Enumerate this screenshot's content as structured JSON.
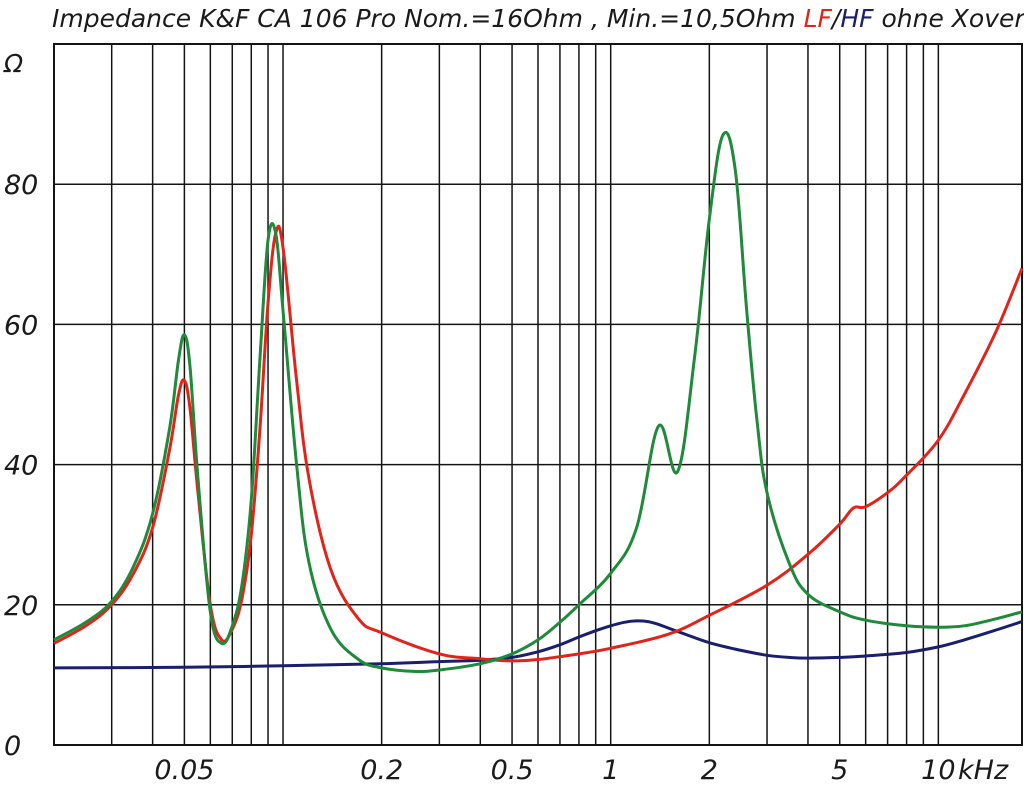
{
  "chart_data": {
    "type": "line",
    "title_parts": [
      {
        "text": "Impedance K&F CA 106 Pro Nom.=16Ohm ,  Min.=10,5Ohm ",
        "color": "#1a1a1a"
      },
      {
        "text": "LF",
        "color": "#e2231a"
      },
      {
        "text": "/",
        "color": "#1a1a1a"
      },
      {
        "text": "HF",
        "color": "#1b1f6b"
      },
      {
        "text": " ohne Xover",
        "color": "#1a1a1a"
      }
    ],
    "ylabel": "Ω",
    "xlabel_unit": "kHz",
    "x_scale": "log",
    "xlim": [
      0.02,
      18
    ],
    "ylim": [
      0,
      100
    ],
    "grid": true,
    "x_ticks": [
      0.02,
      0.03,
      0.04,
      0.05,
      0.06,
      0.07,
      0.08,
      0.09,
      0.1,
      0.2,
      0.3,
      0.4,
      0.5,
      0.6,
      0.7,
      0.8,
      0.9,
      1,
      2,
      3,
      4,
      5,
      6,
      7,
      8,
      9,
      10
    ],
    "x_tick_labels": [
      {
        "value": 0.05,
        "label": "0.05"
      },
      {
        "value": 0.2,
        "label": "0.2"
      },
      {
        "value": 0.5,
        "label": "0.5"
      },
      {
        "value": 1,
        "label": "1"
      },
      {
        "value": 2,
        "label": "2"
      },
      {
        "value": 5,
        "label": "5"
      },
      {
        "value": 10,
        "label": "10"
      }
    ],
    "y_ticks": [
      0,
      20,
      40,
      60,
      80,
      100
    ],
    "y_tick_labels": [
      {
        "value": 0,
        "label": "0"
      },
      {
        "value": 20,
        "label": "20"
      },
      {
        "value": 40,
        "label": "40"
      },
      {
        "value": 60,
        "label": "60"
      },
      {
        "value": 80,
        "label": "80"
      }
    ],
    "series": [
      {
        "color": "#1b1f6b",
        "x": [
          0.02,
          0.05,
          0.1,
          0.2,
          0.3,
          0.4,
          0.5,
          0.6,
          0.7,
          0.8,
          0.9,
          1.0,
          1.1,
          1.2,
          1.3,
          1.4,
          1.6,
          2.0,
          2.5,
          3.0,
          3.5,
          4.0,
          5.0,
          6.0,
          8.0,
          10.0,
          12.0,
          15.0,
          18.0
        ],
        "values": [
          11.0,
          11.1,
          11.3,
          11.6,
          11.9,
          12.1,
          12.5,
          13.3,
          14.3,
          15.4,
          16.3,
          17.0,
          17.5,
          17.7,
          17.6,
          17.2,
          16.2,
          14.6,
          13.5,
          12.8,
          12.5,
          12.4,
          12.5,
          12.7,
          13.2,
          14.0,
          15.0,
          16.4,
          17.6
        ]
      },
      {
        "color": "#e2231a",
        "x": [
          0.02,
          0.025,
          0.03,
          0.035,
          0.04,
          0.045,
          0.048,
          0.05,
          0.052,
          0.055,
          0.06,
          0.065,
          0.07,
          0.075,
          0.08,
          0.085,
          0.09,
          0.095,
          0.1,
          0.11,
          0.12,
          0.14,
          0.17,
          0.2,
          0.3,
          0.4,
          0.5,
          0.6,
          0.7,
          0.8,
          1.0,
          1.5,
          2.0,
          3.0,
          4.0,
          5.0,
          5.5,
          6.0,
          7.0,
          8.0,
          10.0,
          12.0,
          15.0,
          18.0
        ],
        "values": [
          14.5,
          17.0,
          20.0,
          24.5,
          31.0,
          42.0,
          50.0,
          52.0,
          48.0,
          36.0,
          20.0,
          15.0,
          16.5,
          21.0,
          30.0,
          45.0,
          63.0,
          73.0,
          71.0,
          52.0,
          38.0,
          25.0,
          18.0,
          16.0,
          13.0,
          12.3,
          12.0,
          12.2,
          12.6,
          13.0,
          13.8,
          15.8,
          18.5,
          22.8,
          27.2,
          31.5,
          33.8,
          34.0,
          36.0,
          38.5,
          43.5,
          50.0,
          59.0,
          68.0
        ]
      },
      {
        "color": "#1e8a3a",
        "x": [
          0.02,
          0.025,
          0.03,
          0.035,
          0.04,
          0.045,
          0.048,
          0.05,
          0.052,
          0.055,
          0.06,
          0.065,
          0.07,
          0.075,
          0.08,
          0.085,
          0.09,
          0.095,
          0.1,
          0.11,
          0.12,
          0.14,
          0.17,
          0.2,
          0.25,
          0.3,
          0.4,
          0.5,
          0.6,
          0.7,
          0.8,
          1.0,
          1.2,
          1.4,
          1.6,
          1.8,
          2.0,
          2.2,
          2.4,
          2.6,
          2.8,
          3.0,
          3.5,
          4.0,
          5.0,
          6.0,
          8.0,
          10.0,
          12.0,
          15.0,
          18.0
        ],
        "values": [
          15.0,
          17.5,
          20.5,
          25.5,
          33.0,
          45.0,
          55.0,
          58.5,
          54.0,
          38.0,
          19.0,
          14.5,
          17.0,
          23.0,
          35.0,
          55.0,
          72.0,
          73.0,
          62.0,
          40.0,
          26.0,
          16.5,
          12.2,
          11.0,
          10.5,
          10.7,
          11.6,
          13.0,
          15.0,
          17.5,
          20.0,
          24.5,
          31.0,
          45.5,
          39.0,
          55.0,
          75.0,
          87.0,
          82.0,
          62.0,
          46.0,
          36.0,
          26.0,
          21.5,
          19.0,
          17.8,
          17.0,
          16.8,
          17.0,
          18.0,
          19.0
        ]
      }
    ]
  }
}
